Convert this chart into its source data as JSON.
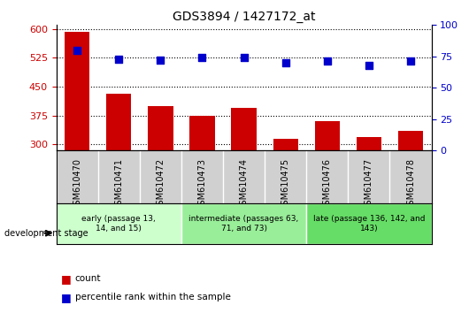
{
  "title": "GDS3894 / 1427172_at",
  "samples": [
    "GSM610470",
    "GSM610471",
    "GSM610472",
    "GSM610473",
    "GSM610474",
    "GSM610475",
    "GSM610476",
    "GSM610477",
    "GSM610478"
  ],
  "counts": [
    592,
    432,
    400,
    375,
    395,
    315,
    360,
    320,
    335
  ],
  "percentile_ranks": [
    80,
    73,
    72,
    74,
    74,
    70,
    71,
    68,
    71
  ],
  "ylim_left": [
    285,
    610
  ],
  "ylim_right": [
    0,
    100
  ],
  "yticks_left": [
    300,
    375,
    450,
    525,
    600
  ],
  "yticks_right": [
    0,
    25,
    50,
    75,
    100
  ],
  "bar_color": "#cc0000",
  "dot_color": "#0000cc",
  "bar_bottom": 285,
  "groups": [
    {
      "label": "early (passage 13,\n14, and 15)",
      "indices": [
        0,
        1,
        2
      ],
      "color": "#ccffcc"
    },
    {
      "label": "intermediate (passages 63,\n71, and 73)",
      "indices": [
        3,
        4,
        5
      ],
      "color": "#99ee99"
    },
    {
      "label": "late (passage 136, 142, and\n143)",
      "indices": [
        6,
        7,
        8
      ],
      "color": "#66dd66"
    }
  ],
  "group_bg_color": "#d0d0d0",
  "legend_count_color": "#cc0000",
  "legend_dot_color": "#0000cc",
  "left_ylabel_color": "#cc0000",
  "right_ylabel_color": "#0000cc"
}
